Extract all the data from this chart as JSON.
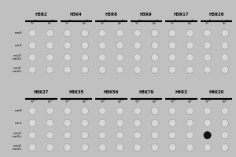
{
  "top_groups": [
    "H3R2",
    "H3K4",
    "H3R8",
    "H3K9",
    "H3R17",
    "H3R26"
  ],
  "bottom_groups": [
    "H3K27",
    "H3K35",
    "H3K56",
    "H3K79",
    "H4R3",
    "H4K20"
  ],
  "col_labels": [
    "10ng",
    "60ng"
  ],
  "row_labels": [
    "me0",
    "me1",
    "me2/\nme2s",
    "me3/\nme2s"
  ],
  "bg_color": "#c0c0c0",
  "panel_bg": "#b0b0b0",
  "dot_empty_facecolor": "#d8d8d8",
  "dot_empty_edgecolor": "#999999",
  "dot_filled_facecolor": "#111111",
  "dot_filled_edgecolor": "#111111",
  "filled_dot": {
    "panel": 1,
    "group": 5,
    "col": 0,
    "row": 2
  },
  "fig_width": 3.0,
  "fig_height": 2.0,
  "dpi": 100
}
